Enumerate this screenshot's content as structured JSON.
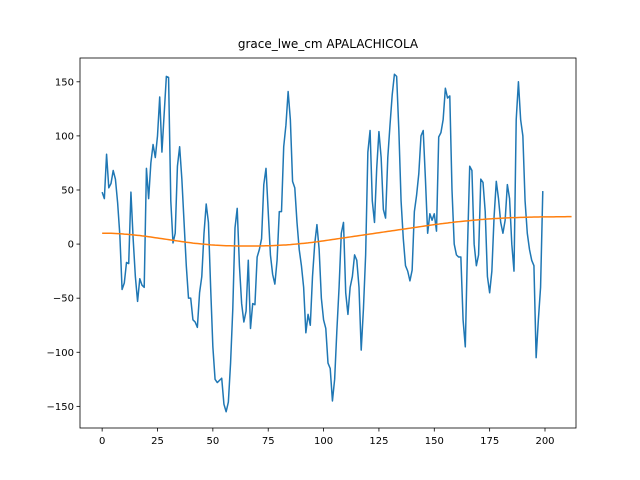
{
  "chart_data": {
    "type": "line",
    "title": "grace_lwe_cm APALACHICOLA",
    "xlabel": "",
    "ylabel": "",
    "xlim": [
      -10,
      214
    ],
    "ylim": [
      -170,
      172
    ],
    "x_ticks": [
      0,
      25,
      50,
      75,
      100,
      125,
      150,
      175,
      200
    ],
    "y_ticks": [
      -150,
      -100,
      -50,
      0,
      50,
      100,
      150
    ],
    "grid": false,
    "legend": "none",
    "series": [
      {
        "color": "#1f77b4",
        "values": [
          48,
          42,
          83,
          52,
          56,
          68,
          60,
          38,
          8,
          -42,
          -36,
          -17,
          -18,
          48,
          5,
          -30,
          -53,
          -32,
          -38,
          -40,
          70,
          42,
          75,
          92,
          80,
          100,
          136,
          85,
          120,
          155,
          154,
          40,
          1,
          10,
          72,
          90,
          60,
          20,
          -20,
          -50,
          -50,
          -70,
          -72,
          -77,
          -45,
          -30,
          10,
          37,
          20,
          -40,
          -95,
          -125,
          -128,
          -126,
          -124,
          -148,
          -155,
          -146,
          -110,
          -60,
          15,
          33,
          -20,
          -55,
          -72,
          -62,
          -15,
          -78,
          -55,
          -56,
          -12,
          -5,
          5,
          55,
          70,
          30,
          -10,
          -28,
          -37,
          -15,
          30,
          30,
          90,
          110,
          141,
          115,
          58,
          52,
          20,
          -5,
          -20,
          -40,
          -82,
          -65,
          -75,
          -30,
          0,
          18,
          -5,
          -50,
          -70,
          -78,
          -110,
          -115,
          -145,
          -125,
          -80,
          -40,
          10,
          20,
          -45,
          -65,
          -40,
          -30,
          -10,
          -15,
          -40,
          -98,
          -60,
          -10,
          85,
          105,
          40,
          20,
          70,
          104,
          80,
          32,
          24,
          80,
          110,
          138,
          157,
          155,
          105,
          40,
          5,
          -20,
          -25,
          -34,
          -24,
          30,
          45,
          65,
          100,
          105,
          60,
          10,
          28,
          22,
          28,
          12,
          99,
          103,
          115,
          144,
          135,
          137,
          50,
          0,
          -10,
          -12,
          -12,
          -70,
          -95,
          -3,
          72,
          68,
          0,
          -20,
          -10,
          60,
          57,
          30,
          -30,
          -45,
          -25,
          25,
          58,
          42,
          20,
          10,
          22,
          55,
          42,
          0,
          -25,
          115,
          150,
          115,
          100,
          40,
          10,
          -5,
          -15,
          -20,
          -105,
          -70,
          -40,
          49
        ]
      },
      {
        "color": "#ff7f0e",
        "values": [
          10,
          10,
          10,
          10,
          10,
          9.9,
          9.8,
          9.7,
          9.6,
          9.4,
          9.2,
          9.1,
          8.9,
          8.7,
          8.5,
          8.3,
          8.1,
          7.9,
          7.6,
          7.4,
          7.1,
          6.8,
          6.5,
          6.2,
          5.9,
          5.6,
          5.3,
          5.0,
          4.7,
          4.4,
          4.1,
          3.8,
          3.5,
          3.2,
          2.9,
          2.6,
          2.3,
          2.0,
          1.7,
          1.5,
          1.2,
          0.9,
          0.7,
          0.5,
          0.3,
          0.1,
          -0.1,
          -0.3,
          -0.5,
          -0.7,
          -0.8,
          -1.0,
          -1.1,
          -1.2,
          -1.3,
          -1.4,
          -1.5,
          -1.6,
          -1.6,
          -1.7,
          -1.7,
          -1.8,
          -1.8,
          -1.8,
          -1.8,
          -1.8,
          -1.8,
          -1.8,
          -1.8,
          -1.8,
          -1.8,
          -1.8,
          -1.7,
          -1.7,
          -1.6,
          -1.6,
          -1.5,
          -1.4,
          -1.3,
          -1.2,
          -1.1,
          -1.0,
          -0.9,
          -0.8,
          -0.6,
          -0.5,
          -0.3,
          -0.1,
          0.1,
          0.3,
          0.5,
          0.7,
          0.9,
          1.1,
          1.4,
          1.6,
          1.9,
          2.1,
          2.4,
          2.7,
          3.0,
          3.3,
          3.6,
          3.9,
          4.2,
          4.5,
          4.8,
          5.1,
          5.4,
          5.7,
          6.0,
          6.3,
          6.6,
          6.9,
          7.2,
          7.5,
          7.8,
          8.1,
          8.4,
          8.7,
          9.0,
          9.3,
          9.6,
          9.9,
          10.2,
          10.5,
          10.8,
          11.1,
          11.4,
          11.7,
          12.0,
          12.3,
          12.6,
          12.9,
          13.2,
          13.5,
          13.8,
          14.1,
          14.4,
          14.7,
          15.0,
          15.3,
          15.6,
          15.9,
          16.2,
          16.5,
          16.8,
          17.1,
          17.4,
          17.7,
          18.0,
          18.3,
          18.5,
          18.8,
          19.0,
          19.3,
          19.5,
          19.8,
          20.0,
          20.3,
          20.5,
          20.7,
          20.9,
          21.1,
          21.3,
          21.5,
          21.7,
          21.9,
          22.1,
          22.3,
          22.5,
          22.7,
          22.8,
          23.0,
          23.2,
          23.3,
          23.4,
          23.6,
          23.7,
          23.8,
          23.9,
          24.0,
          24.1,
          24.2,
          24.3,
          24.4,
          24.5,
          24.5,
          24.6,
          24.7,
          24.7,
          24.8,
          24.8,
          24.9,
          24.9,
          25.0,
          25.0,
          25.0,
          25.1,
          25.1,
          25.1,
          25.2,
          25.2,
          25.2,
          25.2,
          25.3,
          25.3,
          25.3,
          25.3,
          25.3,
          25.4,
          25.4,
          25.4
        ]
      }
    ]
  }
}
